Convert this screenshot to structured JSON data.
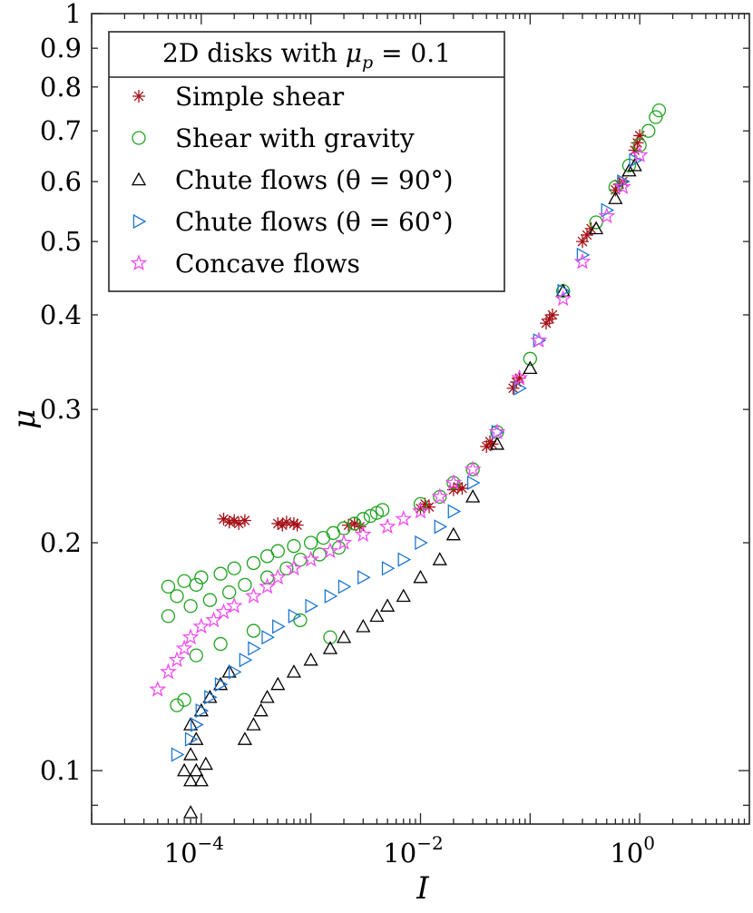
{
  "chart_data": {
    "type": "scatter",
    "x_scale": "log",
    "y_scale": "log",
    "xlim": [
      1e-05,
      10
    ],
    "ylim": [
      0.085,
      1.0
    ],
    "xlabel": "I",
    "ylabel": "μ",
    "x_tick_labels": [
      {
        "value": 0.0001,
        "base": "10",
        "exp": "−4"
      },
      {
        "value": 0.01,
        "base": "10",
        "exp": "−2"
      },
      {
        "value": 1,
        "base": "10",
        "exp": "0"
      }
    ],
    "y_tick_labels": [
      {
        "value": 0.1,
        "label": "0.1"
      },
      {
        "value": 0.2,
        "label": "0.2"
      },
      {
        "value": 0.3,
        "label": "0.3"
      },
      {
        "value": 0.4,
        "label": "0.4"
      },
      {
        "value": 0.5,
        "label": "0.5"
      },
      {
        "value": 0.6,
        "label": "0.6"
      },
      {
        "value": 0.7,
        "label": "0.7"
      },
      {
        "value": 0.8,
        "label": "0.8"
      },
      {
        "value": 0.9,
        "label": "0.9"
      },
      {
        "value": 1.0,
        "label": "1"
      }
    ],
    "legend": {
      "title": "2D disks with μp = 0.1",
      "location": "top-left",
      "entries": [
        {
          "label": "Simple shear",
          "marker": "asterisk",
          "color": "#a50f15"
        },
        {
          "label": "Shear with gravity",
          "marker": "circle",
          "color": "#1fa31f"
        },
        {
          "label": "Chute flows (θ = 90°)",
          "marker": "triangle-up",
          "color": "#000000"
        },
        {
          "label": "Chute flows (θ = 60°)",
          "marker": "triangle-right",
          "color": "#1f77d4"
        },
        {
          "label": "Concave flows",
          "marker": "pentagram",
          "color": "#f04bf0"
        }
      ]
    },
    "series": [
      {
        "name": "Simple shear",
        "marker": "asterisk",
        "color": "#a50f15",
        "points": [
          [
            0.00016,
            0.215
          ],
          [
            0.00018,
            0.213
          ],
          [
            0.0002,
            0.214
          ],
          [
            0.00022,
            0.212
          ],
          [
            0.00025,
            0.214
          ],
          [
            0.0005,
            0.212
          ],
          [
            0.00055,
            0.211
          ],
          [
            0.0006,
            0.213
          ],
          [
            0.0007,
            0.212
          ],
          [
            0.00075,
            0.211
          ],
          [
            0.0022,
            0.211
          ],
          [
            0.0025,
            0.212
          ],
          [
            0.0028,
            0.21
          ],
          [
            0.01,
            0.222
          ],
          [
            0.011,
            0.225
          ],
          [
            0.012,
            0.223
          ],
          [
            0.02,
            0.235
          ],
          [
            0.022,
            0.237
          ],
          [
            0.024,
            0.236
          ],
          [
            0.04,
            0.268
          ],
          [
            0.043,
            0.272
          ],
          [
            0.045,
            0.27
          ],
          [
            0.07,
            0.32
          ],
          [
            0.075,
            0.326
          ],
          [
            0.08,
            0.33
          ],
          [
            0.14,
            0.39
          ],
          [
            0.15,
            0.395
          ],
          [
            0.16,
            0.4
          ],
          [
            0.3,
            0.5
          ],
          [
            0.33,
            0.51
          ],
          [
            0.36,
            0.52
          ],
          [
            0.6,
            0.585
          ],
          [
            0.65,
            0.595
          ],
          [
            0.7,
            0.6
          ],
          [
            0.9,
            0.66
          ],
          [
            0.95,
            0.675
          ],
          [
            1.0,
            0.69
          ]
        ]
      },
      {
        "name": "Shear with gravity",
        "marker": "circle",
        "color": "#1fa31f",
        "points": [
          [
            5e-05,
            0.175
          ],
          [
            6e-05,
            0.17
          ],
          [
            7e-05,
            0.178
          ],
          [
            9e-05,
            0.176
          ],
          [
            0.0001,
            0.18
          ],
          [
            0.00015,
            0.182
          ],
          [
            0.0002,
            0.185
          ],
          [
            0.0003,
            0.188
          ],
          [
            0.0004,
            0.192
          ],
          [
            0.0005,
            0.195
          ],
          [
            0.0007,
            0.198
          ],
          [
            0.001,
            0.2
          ],
          [
            0.0013,
            0.203
          ],
          [
            0.0016,
            0.206
          ],
          [
            0.002,
            0.209
          ],
          [
            0.0025,
            0.212
          ],
          [
            0.003,
            0.215
          ],
          [
            0.0035,
            0.217
          ],
          [
            0.004,
            0.219
          ],
          [
            0.0045,
            0.221
          ],
          [
            8e-05,
            0.165
          ],
          [
            0.00012,
            0.168
          ],
          [
            0.00018,
            0.172
          ],
          [
            0.00025,
            0.176
          ],
          [
            0.0004,
            0.18
          ],
          [
            0.0006,
            0.185
          ],
          [
            0.0008,
            0.19
          ],
          [
            0.0012,
            0.193
          ],
          [
            0.0018,
            0.197
          ],
          [
            5e-05,
            0.16
          ],
          [
            6e-05,
            0.122
          ],
          [
            7e-05,
            0.124
          ],
          [
            9e-05,
            0.142
          ],
          [
            0.00015,
            0.147
          ],
          [
            0.0003,
            0.153
          ],
          [
            0.0008,
            0.158
          ],
          [
            0.0015,
            0.15
          ],
          [
            0.01,
            0.225
          ],
          [
            0.015,
            0.23
          ],
          [
            0.02,
            0.24
          ],
          [
            0.03,
            0.25
          ],
          [
            0.05,
            0.28
          ],
          [
            0.1,
            0.35
          ],
          [
            0.2,
            0.43
          ],
          [
            0.4,
            0.53
          ],
          [
            0.6,
            0.59
          ],
          [
            0.8,
            0.63
          ],
          [
            1.0,
            0.67
          ],
          [
            1.2,
            0.7
          ],
          [
            1.4,
            0.73
          ],
          [
            1.5,
            0.745
          ]
        ]
      },
      {
        "name": "Chute flows (θ = 90°)",
        "marker": "triangle-up",
        "color": "#000000",
        "points": [
          [
            7e-05,
            0.1
          ],
          [
            8e-05,
            0.097
          ],
          [
            9e-05,
            0.1
          ],
          [
            0.0001,
            0.097
          ],
          [
            8e-05,
            0.088
          ],
          [
            8e-05,
            0.105
          ],
          [
            9e-05,
            0.11
          ],
          [
            0.00011,
            0.102
          ],
          [
            8e-05,
            0.115
          ],
          [
            0.0001,
            0.12
          ],
          [
            0.00012,
            0.125
          ],
          [
            0.00015,
            0.13
          ],
          [
            0.00018,
            0.135
          ],
          [
            0.00025,
            0.11
          ],
          [
            0.0003,
            0.115
          ],
          [
            0.00035,
            0.12
          ],
          [
            0.0004,
            0.125
          ],
          [
            0.0005,
            0.13
          ],
          [
            0.0007,
            0.135
          ],
          [
            0.001,
            0.14
          ],
          [
            0.0015,
            0.145
          ],
          [
            0.002,
            0.15
          ],
          [
            0.003,
            0.155
          ],
          [
            0.004,
            0.16
          ],
          [
            0.005,
            0.165
          ],
          [
            0.007,
            0.17
          ],
          [
            0.01,
            0.18
          ],
          [
            0.015,
            0.19
          ],
          [
            0.02,
            0.205
          ],
          [
            0.03,
            0.23
          ],
          [
            0.05,
            0.27
          ],
          [
            0.1,
            0.34
          ],
          [
            0.2,
            0.43
          ],
          [
            0.4,
            0.52
          ],
          [
            0.6,
            0.57
          ],
          [
            0.8,
            0.62
          ],
          [
            0.9,
            0.63
          ]
        ]
      },
      {
        "name": "Chute flows (θ = 60°)",
        "marker": "triangle-right",
        "color": "#1f77d4",
        "points": [
          [
            6e-05,
            0.105
          ],
          [
            8e-05,
            0.11
          ],
          [
            9e-05,
            0.115
          ],
          [
            0.0001,
            0.12
          ],
          [
            0.00012,
            0.125
          ],
          [
            0.00015,
            0.13
          ],
          [
            0.0002,
            0.135
          ],
          [
            0.00025,
            0.14
          ],
          [
            0.0003,
            0.145
          ],
          [
            0.0004,
            0.15
          ],
          [
            0.0005,
            0.155
          ],
          [
            0.0007,
            0.16
          ],
          [
            0.001,
            0.165
          ],
          [
            0.0015,
            0.17
          ],
          [
            0.002,
            0.175
          ],
          [
            0.003,
            0.18
          ],
          [
            0.005,
            0.185
          ],
          [
            0.007,
            0.19
          ],
          [
            0.01,
            0.2
          ],
          [
            0.015,
            0.21
          ],
          [
            0.02,
            0.22
          ],
          [
            0.03,
            0.24
          ],
          [
            0.05,
            0.28
          ],
          [
            0.08,
            0.32
          ],
          [
            0.12,
            0.37
          ],
          [
            0.2,
            0.43
          ],
          [
            0.3,
            0.48
          ],
          [
            0.5,
            0.55
          ],
          [
            0.7,
            0.6
          ],
          [
            0.9,
            0.64
          ]
        ]
      },
      {
        "name": "Concave flows",
        "marker": "pentagram",
        "color": "#f04bf0",
        "points": [
          [
            4e-05,
            0.128
          ],
          [
            5e-05,
            0.135
          ],
          [
            6e-05,
            0.14
          ],
          [
            7e-05,
            0.145
          ],
          [
            8e-05,
            0.15
          ],
          [
            0.0001,
            0.155
          ],
          [
            0.00013,
            0.158
          ],
          [
            0.00016,
            0.162
          ],
          [
            0.0002,
            0.165
          ],
          [
            0.0003,
            0.17
          ],
          [
            0.0004,
            0.175
          ],
          [
            0.0005,
            0.18
          ],
          [
            0.0007,
            0.185
          ],
          [
            0.001,
            0.19
          ],
          [
            0.0015,
            0.195
          ],
          [
            0.002,
            0.2
          ],
          [
            0.003,
            0.205
          ],
          [
            0.005,
            0.21
          ],
          [
            0.007,
            0.215
          ],
          [
            0.01,
            0.22
          ],
          [
            0.015,
            0.23
          ],
          [
            0.02,
            0.24
          ],
          [
            0.03,
            0.25
          ],
          [
            0.05,
            0.28
          ],
          [
            0.08,
            0.33
          ],
          [
            0.12,
            0.37
          ],
          [
            0.2,
            0.42
          ],
          [
            0.3,
            0.47
          ],
          [
            0.5,
            0.54
          ],
          [
            0.7,
            0.59
          ],
          [
            1.0,
            0.65
          ]
        ]
      }
    ]
  }
}
